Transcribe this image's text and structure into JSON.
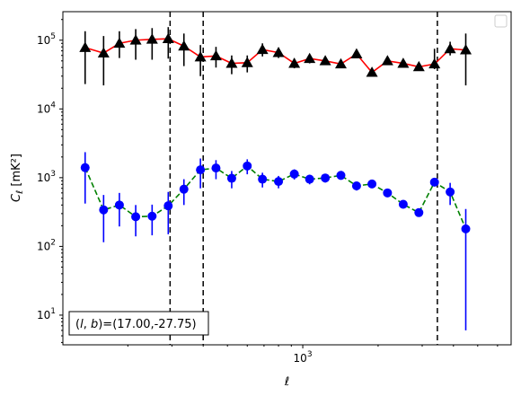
{
  "chart_data": {
    "type": "scatter",
    "xscale": "log",
    "yscale": "log",
    "xlim": [
      110,
      6800
    ],
    "ylim": [
      3.7,
      260000
    ],
    "xlabel": "ℓ",
    "ylabel": "C_ℓ  [mK²]",
    "x_ticks": [
      {
        "value": 1000,
        "base": "10",
        "exp": "3"
      }
    ],
    "y_ticks": [
      {
        "value": 10,
        "base": "10",
        "exp": "1"
      },
      {
        "value": 100,
        "base": "10",
        "exp": "2"
      },
      {
        "value": 1000,
        "base": "10",
        "exp": "3"
      },
      {
        "value": 10000,
        "base": "10",
        "exp": "4"
      },
      {
        "value": 100000,
        "base": "10",
        "exp": "5"
      }
    ],
    "legend": {
      "placement": "upper-right",
      "entries": []
    },
    "annotation": "(l, b)=(17.00,-27.75)",
    "annotation_parts": {
      "prefix": "(",
      "l": "l",
      "sep": ", ",
      "b": "b",
      "suffix": ")=(17.00,-27.75)"
    },
    "vlines": [
      295,
      400,
      3450
    ],
    "series": [
      {
        "marker": "triangle",
        "color": "#000000",
        "line_color": "#ff0000",
        "line_style": "solid",
        "errbar_color": "#000000",
        "points": [
          {
            "x": 135,
            "y": 78000,
            "lo": 23000,
            "hi": 135000
          },
          {
            "x": 160,
            "y": 65000,
            "lo": 22000,
            "hi": 115000
          },
          {
            "x": 185,
            "y": 90000,
            "lo": 55000,
            "hi": 135000
          },
          {
            "x": 215,
            "y": 100000,
            "lo": 52000,
            "hi": 145000
          },
          {
            "x": 250,
            "y": 103000,
            "lo": 52000,
            "hi": 150000
          },
          {
            "x": 290,
            "y": 105000,
            "lo": 54000,
            "hi": 155000
          },
          {
            "x": 335,
            "y": 82000,
            "lo": 42000,
            "hi": 125000
          },
          {
            "x": 390,
            "y": 57000,
            "lo": 30000,
            "hi": 85000
          },
          {
            "x": 450,
            "y": 59000,
            "lo": 40000,
            "hi": 80000
          },
          {
            "x": 520,
            "y": 46000,
            "lo": 32000,
            "hi": 60000
          },
          {
            "x": 600,
            "y": 47000,
            "lo": 34000,
            "hi": 60000
          },
          {
            "x": 690,
            "y": 73000,
            "lo": 58000,
            "hi": 90000
          },
          {
            "x": 800,
            "y": 66000,
            "lo": 55000,
            "hi": 78000
          },
          {
            "x": 925,
            "y": 46000,
            "lo": 39000,
            "hi": 54000
          },
          {
            "x": 1065,
            "y": 54000,
            "lo": 46000,
            "hi": 62000
          },
          {
            "x": 1230,
            "y": 50000,
            "lo": 44000,
            "hi": 56000
          },
          {
            "x": 1420,
            "y": 45000,
            "lo": 40000,
            "hi": 51000
          },
          {
            "x": 1640,
            "y": 63000,
            "lo": 57000,
            "hi": 69000
          },
          {
            "x": 1890,
            "y": 34000,
            "lo": 31000,
            "hi": 37000
          },
          {
            "x": 2180,
            "y": 50000,
            "lo": 46000,
            "hi": 54000
          },
          {
            "x": 2520,
            "y": 46000,
            "lo": 43000,
            "hi": 49000
          },
          {
            "x": 2910,
            "y": 41000,
            "lo": 38000,
            "hi": 44000
          },
          {
            "x": 3360,
            "y": 45000,
            "lo": 38000,
            "hi": 75000
          },
          {
            "x": 3880,
            "y": 75000,
            "lo": 60000,
            "hi": 95000
          },
          {
            "x": 4480,
            "y": 72000,
            "lo": 22000,
            "hi": 125000
          }
        ]
      },
      {
        "marker": "circle",
        "color": "#0000ff",
        "line_color": "#008000",
        "line_style": "dashed",
        "errbar_color": "#0000ff",
        "points": [
          {
            "x": 135,
            "y": 1400,
            "lo": 420,
            "hi": 2350
          },
          {
            "x": 160,
            "y": 340,
            "lo": 115,
            "hi": 560
          },
          {
            "x": 185,
            "y": 400,
            "lo": 195,
            "hi": 600
          },
          {
            "x": 215,
            "y": 270,
            "lo": 140,
            "hi": 400
          },
          {
            "x": 250,
            "y": 275,
            "lo": 145,
            "hi": 405
          },
          {
            "x": 290,
            "y": 390,
            "lo": 150,
            "hi": 620
          },
          {
            "x": 335,
            "y": 680,
            "lo": 400,
            "hi": 950
          },
          {
            "x": 390,
            "y": 1300,
            "lo": 700,
            "hi": 1900
          },
          {
            "x": 450,
            "y": 1380,
            "lo": 950,
            "hi": 1800
          },
          {
            "x": 520,
            "y": 980,
            "lo": 700,
            "hi": 1250
          },
          {
            "x": 600,
            "y": 1480,
            "lo": 1120,
            "hi": 1850
          },
          {
            "x": 690,
            "y": 950,
            "lo": 720,
            "hi": 1180
          },
          {
            "x": 800,
            "y": 880,
            "lo": 700,
            "hi": 1060
          },
          {
            "x": 925,
            "y": 1130,
            "lo": 940,
            "hi": 1320
          },
          {
            "x": 1065,
            "y": 950,
            "lo": 800,
            "hi": 1100
          },
          {
            "x": 1230,
            "y": 990,
            "lo": 850,
            "hi": 1130
          },
          {
            "x": 1420,
            "y": 1080,
            "lo": 930,
            "hi": 1230
          },
          {
            "x": 1640,
            "y": 760,
            "lo": 650,
            "hi": 870
          },
          {
            "x": 1890,
            "y": 810,
            "lo": 710,
            "hi": 910
          },
          {
            "x": 2180,
            "y": 600,
            "lo": 530,
            "hi": 670
          },
          {
            "x": 2520,
            "y": 410,
            "lo": 360,
            "hi": 460
          },
          {
            "x": 2910,
            "y": 310,
            "lo": 270,
            "hi": 350
          },
          {
            "x": 3360,
            "y": 860,
            "lo": 760,
            "hi": 960
          },
          {
            "x": 3880,
            "y": 620,
            "lo": 400,
            "hi": 840
          },
          {
            "x": 4480,
            "y": 180,
            "lo": 6,
            "hi": 350
          }
        ]
      }
    ]
  }
}
